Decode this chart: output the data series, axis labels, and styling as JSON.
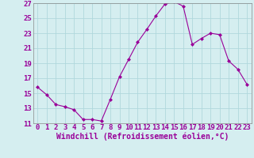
{
  "x": [
    0,
    1,
    2,
    3,
    4,
    5,
    6,
    7,
    8,
    9,
    10,
    11,
    12,
    13,
    14,
    15,
    16,
    17,
    18,
    19,
    20,
    21,
    22,
    23
  ],
  "y": [
    15.8,
    14.8,
    13.5,
    13.2,
    12.8,
    11.5,
    11.5,
    11.3,
    14.2,
    17.2,
    19.5,
    21.8,
    23.5,
    25.3,
    26.9,
    27.2,
    26.6,
    21.5,
    22.3,
    23.0,
    22.8,
    19.3,
    18.2,
    16.2
  ],
  "line_color": "#990099",
  "marker": "D",
  "marker_size": 2,
  "background_color": "#d5eef0",
  "grid_color": "#b0d8dc",
  "xlabel": "Windchill (Refroidissement éolien,°C)",
  "ylabel": "",
  "title": "",
  "ylim": [
    11,
    27
  ],
  "xlim": [
    -0.5,
    23.5
  ],
  "yticks": [
    11,
    13,
    15,
    17,
    19,
    21,
    23,
    25,
    27
  ],
  "xticks": [
    0,
    1,
    2,
    3,
    4,
    5,
    6,
    7,
    8,
    9,
    10,
    11,
    12,
    13,
    14,
    15,
    16,
    17,
    18,
    19,
    20,
    21,
    22,
    23
  ],
  "tick_label_color": "#990099",
  "spine_color": "#888888",
  "xlabel_color": "#990099",
  "xlabel_fontsize": 7,
  "tick_fontsize": 6.5
}
